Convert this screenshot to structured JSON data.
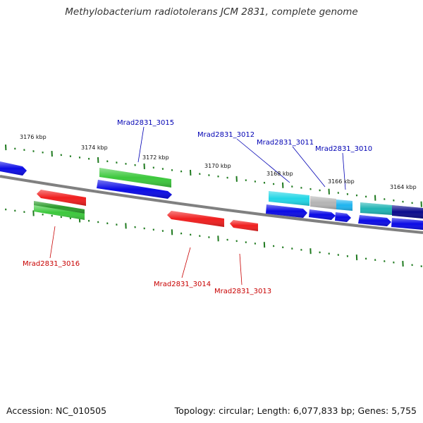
{
  "title": "Methylobacterium radiotolerans JCM 2831, complete genome",
  "footer": {
    "accession": "Accession: NC_010505",
    "topology": "Topology: circular; Length: 6,077,833 bp; Genes: 5,755"
  },
  "colors": {
    "backbone": "#808080",
    "tick": "#1f7a1f",
    "forward_label": "#0000b4",
    "reverse_label": "#c80000",
    "blue": "#0a0ae6",
    "green": "#3cc83c",
    "darkgreen": "#2a9a2a",
    "red": "#f01e1e",
    "cyan": "#22d6e6",
    "teal": "#20b4b4",
    "gray": "#b4b4b4",
    "sky": "#1eb4f0",
    "navy": "#0a0a8c"
  },
  "kbp_labels": [
    "3176 kbp",
    "3174 kbp",
    "3172 kbp",
    "3170 kbp",
    "3168 kbp",
    "3166 kbp",
    "3164 kbp"
  ],
  "gene_labels": [
    {
      "text": "Mrad2831_3015",
      "strand": "forward"
    },
    {
      "text": "Mrad2831_3012",
      "strand": "forward"
    },
    {
      "text": "Mrad2831_3011",
      "strand": "forward"
    },
    {
      "text": "Mrad2831_3010",
      "strand": "forward"
    },
    {
      "text": "Mrad2831_3016",
      "strand": "reverse"
    },
    {
      "text": "Mrad2831_3014",
      "strand": "reverse"
    },
    {
      "text": "Mrad2831_3013",
      "strand": "reverse"
    }
  ]
}
